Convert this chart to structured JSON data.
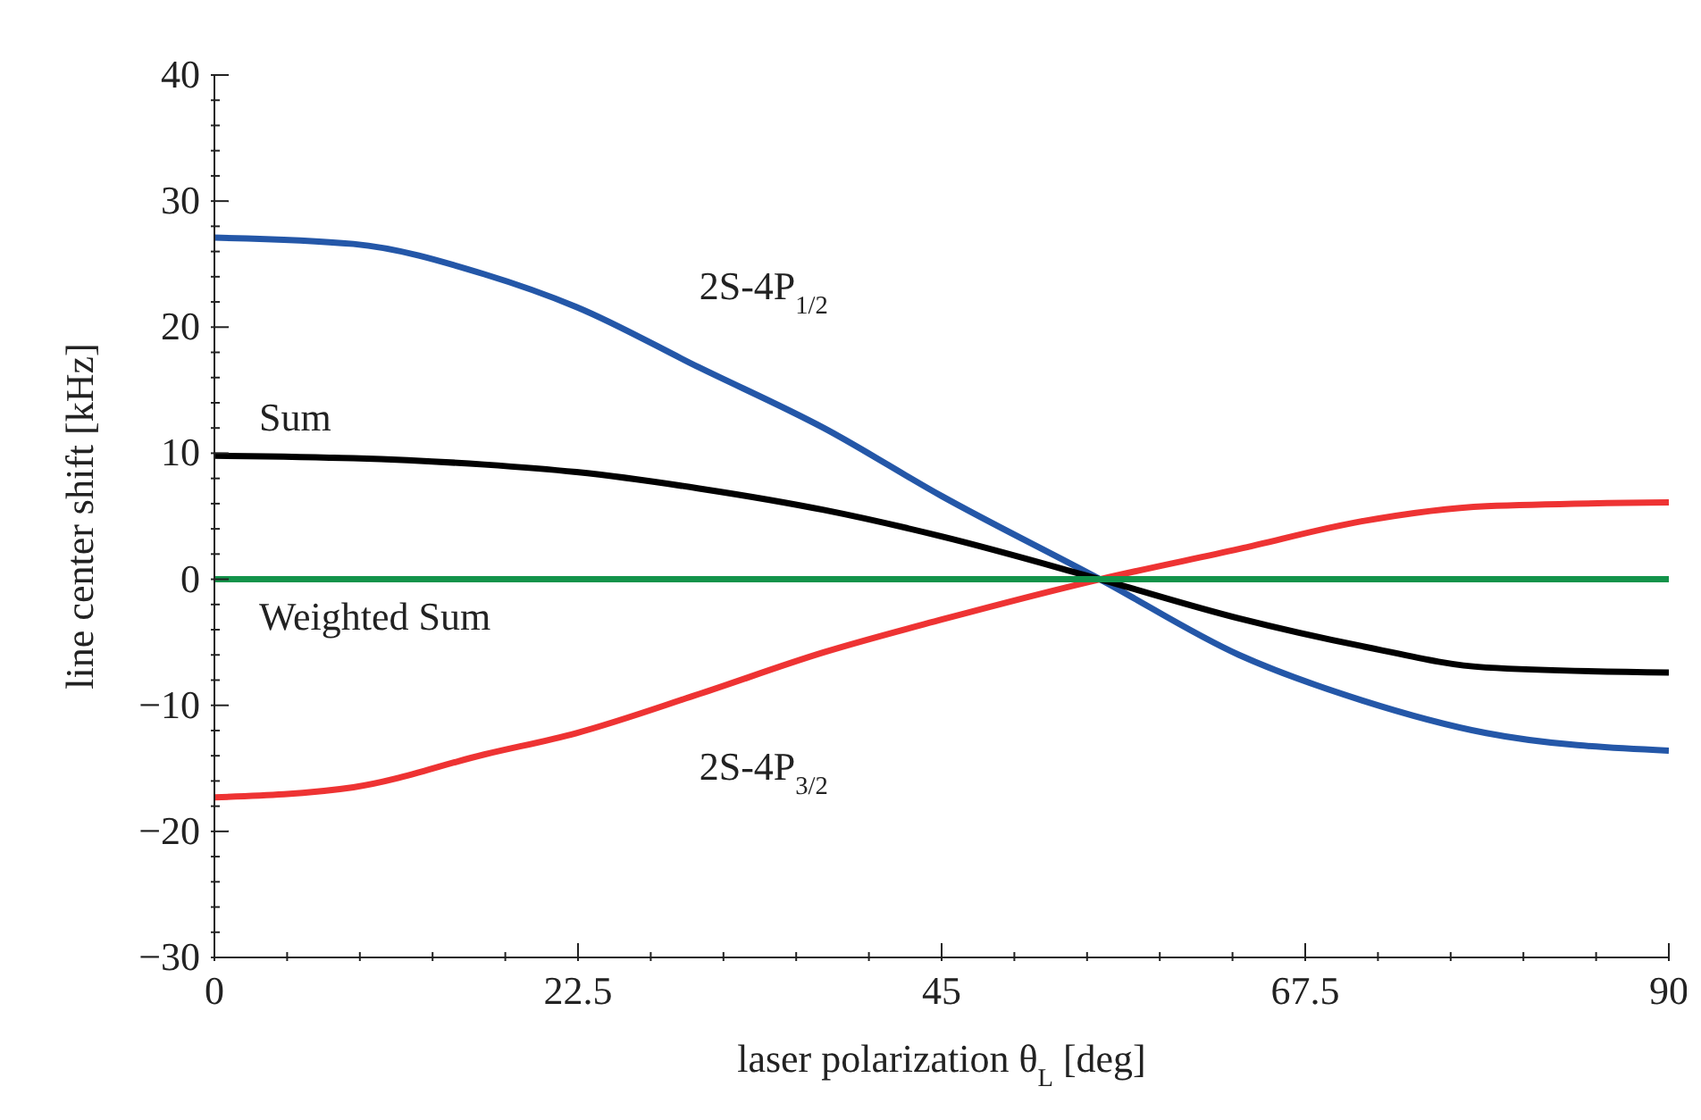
{
  "chart_data": {
    "type": "line",
    "xlabel": "laser polarization θ$_{L}$ [deg]",
    "ylabel": "line center shift [kHz]",
    "xlim": [
      0,
      90
    ],
    "ylim": [
      -30,
      40
    ],
    "xticks": [
      0,
      {
        "value": 4.5,
        "label": null
      },
      {
        "value": 9,
        "label": null
      },
      {
        "value": 13.5,
        "label": null
      },
      {
        "value": 18,
        "label": null
      },
      22.5,
      {
        "value": 27,
        "label": null
      },
      {
        "value": 31.5,
        "label": null
      },
      {
        "value": 36,
        "label": null
      },
      {
        "value": 40.5,
        "label": null
      },
      45,
      {
        "value": 49.5,
        "label": null
      },
      {
        "value": 54,
        "label": null
      },
      {
        "value": 58.5,
        "label": null
      },
      {
        "value": 63,
        "label": null
      },
      67.5,
      {
        "value": 72,
        "label": null
      },
      {
        "value": 76.5,
        "label": null
      },
      {
        "value": 81,
        "label": null
      },
      {
        "value": 85.5,
        "label": null
      },
      90
    ],
    "yticks": [
      -30,
      {
        "value": -28,
        "label": null
      },
      {
        "value": -26,
        "label": null
      },
      {
        "value": -24,
        "label": null
      },
      {
        "value": -22,
        "label": null
      },
      -20,
      {
        "value": -18,
        "label": null
      },
      {
        "value": -16,
        "label": null
      },
      {
        "value": -14,
        "label": null
      },
      {
        "value": -12,
        "label": null
      },
      -10,
      {
        "value": -8,
        "label": null
      },
      {
        "value": -6,
        "label": null
      },
      {
        "value": -4,
        "label": null
      },
      {
        "value": -2,
        "label": null
      },
      0,
      {
        "value": 2,
        "label": null
      },
      {
        "value": 4,
        "label": null
      },
      {
        "value": 6,
        "label": null
      },
      {
        "value": 8,
        "label": null
      },
      10,
      {
        "value": 12,
        "label": null
      },
      {
        "value": 14,
        "label": null
      },
      {
        "value": 16,
        "label": null
      },
      {
        "value": 18,
        "label": null
      },
      20,
      {
        "value": 22,
        "label": null
      },
      {
        "value": 24,
        "label": null
      },
      {
        "value": 26,
        "label": null
      },
      {
        "value": 28,
        "label": null
      },
      30,
      {
        "value": 32,
        "label": null
      },
      {
        "value": 34,
        "label": null
      },
      {
        "value": 36,
        "label": null
      },
      {
        "value": 38,
        "label": null
      },
      40
    ],
    "x": [
      0,
      8.6,
      16.7,
      22.4,
      30,
      37.7,
      45,
      54.8,
      63.4,
      71,
      78.7,
      90
    ],
    "series": [
      {
        "name": "2S-4P$_{1/2}$",
        "color": "#2457a8",
        "values": [
          27.1,
          26.6,
          24.2,
          21.6,
          16.8,
          12.0,
          6.6,
          0,
          -6.0,
          -9.6,
          -12.2,
          -13.6
        ]
      },
      {
        "name": "2S-4P$_{3/2}$",
        "color": "#ee3333",
        "values": [
          -17.3,
          -16.5,
          -13.9,
          -12.2,
          -9.1,
          -5.8,
          -3.2,
          0,
          2.4,
          4.6,
          5.8,
          6.1
        ]
      },
      {
        "name": "Sum",
        "color": "#000000",
        "values": [
          9.8,
          9.6,
          9.1,
          8.5,
          7.2,
          5.5,
          3.4,
          0,
          -3.1,
          -5.3,
          -7.0,
          -7.4
        ]
      },
      {
        "name": "Weighted Sum",
        "color": "#12934a",
        "x": [
          0,
          90
        ],
        "values": [
          0,
          0
        ]
      }
    ]
  }
}
